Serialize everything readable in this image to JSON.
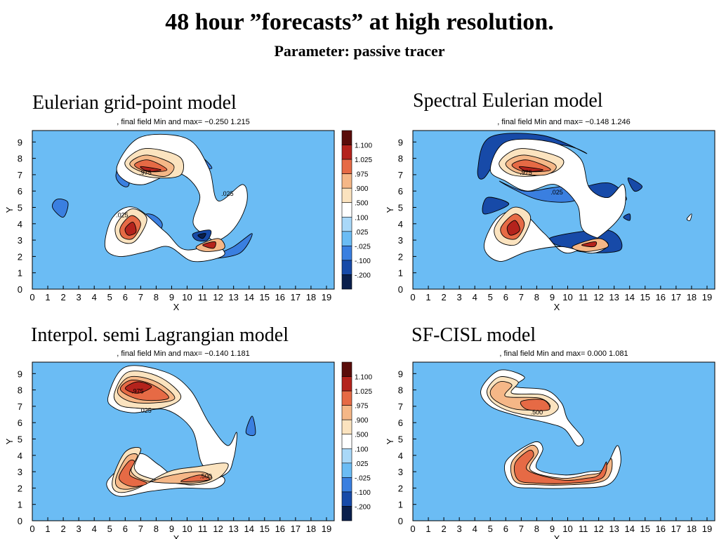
{
  "header": {
    "title": "48 hour ”forecasts” at high resolution.",
    "subtitle": "Parameter: passive tracer"
  },
  "colors": {
    "background": "#6bbcf4",
    "levels": [
      "#0a1f4c",
      "#174aa8",
      "#3a7fe0",
      "#6bbcf4",
      "#a9d8f8",
      "#ffffff",
      "#fbe3bf",
      "#f5b787",
      "#e66a45",
      "#b4231c",
      "#5a0d0a"
    ]
  },
  "colorbar": {
    "labels": [
      "1.100",
      "1.025",
      ".975",
      ".900",
      ".500",
      ".100",
      ".025",
      "-.025",
      "-.100",
      "-.200"
    ]
  },
  "chart_data": [
    {
      "type": "heatmap",
      "title": "Eulerian grid-point model",
      "subtitle": ", final field Min and max= −0.250   1.215",
      "xlabel": "X",
      "ylabel": "Y",
      "x_ticks": [
        "0",
        "1",
        "2",
        "3",
        "4",
        "5",
        "6",
        "7",
        "8",
        "9",
        "10",
        "11",
        "12",
        "13",
        "14",
        "15",
        "16",
        "17",
        "18",
        "19"
      ],
      "y_ticks": [
        "0",
        "1",
        "2",
        "3",
        "4",
        "5",
        "6",
        "7",
        "8",
        "9"
      ],
      "xlim": [
        0,
        19.5
      ],
      "ylim": [
        0,
        9.7
      ],
      "min": -0.25,
      "max": 1.215,
      "contour_labels": [
        {
          "text": ".975",
          "x": 7.3,
          "y": 7.0
        },
        {
          "text": ".025",
          "x": 12.6,
          "y": 5.7
        },
        {
          "text": ".025",
          "x": 5.8,
          "y": 4.4
        }
      ],
      "show_colorbar": true
    },
    {
      "type": "heatmap",
      "title": "Spectral Eulerian model",
      "subtitle": ", final field Min and max= −0.148   1.246",
      "xlabel": "X",
      "ylabel": "Y",
      "x_ticks": [
        "0",
        "1",
        "2",
        "3",
        "4",
        "5",
        "6",
        "7",
        "8",
        "9",
        "10",
        "11",
        "12",
        "13",
        "14",
        "15",
        "16",
        "17",
        "18",
        "19"
      ],
      "y_ticks": [
        "0",
        "1",
        "2",
        "3",
        "4",
        "5",
        "6",
        "7",
        "8",
        "9"
      ],
      "xlim": [
        0,
        19.5
      ],
      "ylim": [
        0,
        9.7
      ],
      "min": -0.148,
      "max": 1.246,
      "contour_labels": [
        {
          "text": ".975",
          "x": 7.3,
          "y": 7.0
        },
        {
          "text": ".025",
          "x": 9.3,
          "y": 5.8
        }
      ],
      "show_colorbar": false
    },
    {
      "type": "heatmap",
      "title": "Interpol. semi Lagrangian model",
      "subtitle": ", final field Min and max= −0.140   1.181",
      "xlabel": "X",
      "ylabel": "Y",
      "x_ticks": [
        "0",
        "1",
        "2",
        "3",
        "4",
        "5",
        "6",
        "7",
        "8",
        "9",
        "10",
        "11",
        "12",
        "13",
        "14",
        "15",
        "16",
        "17",
        "18",
        "19"
      ],
      "y_ticks": [
        "0",
        "1",
        "2",
        "3",
        "4",
        "5",
        "6",
        "7",
        "8",
        "9"
      ],
      "xlim": [
        0,
        19.5
      ],
      "ylim": [
        0,
        9.7
      ],
      "min": -0.14,
      "max": 1.181,
      "contour_labels": [
        {
          "text": ".975",
          "x": 6.8,
          "y": 7.8
        },
        {
          "text": ".025",
          "x": 7.3,
          "y": 6.6
        },
        {
          "text": ".500",
          "x": 11.2,
          "y": 2.6
        }
      ],
      "show_colorbar": true
    },
    {
      "type": "heatmap",
      "title": "SF-CISL model",
      "subtitle": ", final field Min and max=  0.000   1.081",
      "xlabel": "X",
      "ylabel": "Y",
      "x_ticks": [
        "0",
        "1",
        "2",
        "3",
        "4",
        "5",
        "6",
        "7",
        "8",
        "9",
        "10",
        "11",
        "12",
        "13",
        "14",
        "15",
        "16",
        "17",
        "18",
        "19"
      ],
      "y_ticks": [
        "0",
        "1",
        "2",
        "3",
        "4",
        "5",
        "6",
        "7",
        "8",
        "9"
      ],
      "xlim": [
        0,
        19.5
      ],
      "ylim": [
        0,
        9.7
      ],
      "min": 0.0,
      "max": 1.081,
      "contour_labels": [
        {
          "text": ".500",
          "x": 8.0,
          "y": 6.5
        }
      ],
      "show_colorbar": false
    }
  ]
}
